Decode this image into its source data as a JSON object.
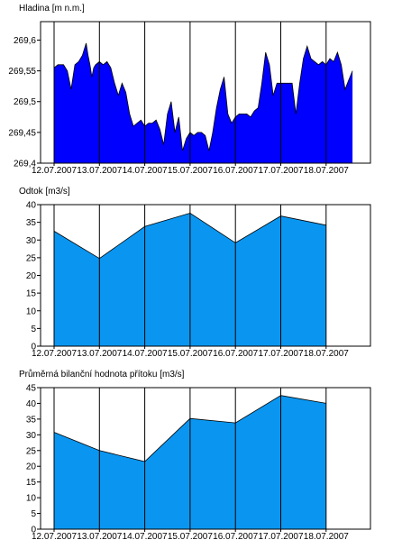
{
  "chart_data": [
    {
      "type": "area",
      "title": "Hladina [m n.m.]",
      "xlabel": "",
      "ylabel": "",
      "x_ticks": [
        "12.07.2007",
        "13.07.2007",
        "14.07.2007",
        "15.07.2007",
        "16.07.2007",
        "17.07.2007",
        "18.07.2007"
      ],
      "y_ticks": [
        "269,4",
        "269,45",
        "269,5",
        "269,55",
        "269,6"
      ],
      "ylim": [
        269.4,
        269.63
      ],
      "fill_color": "#0000ff",
      "grid": "vertical",
      "x": [
        "12.07.2007 00:00",
        "12.07.2007 02:00",
        "12.07.2007 05:00",
        "12.07.2007 07:00",
        "12.07.2007 09:00",
        "12.07.2007 11:00",
        "12.07.2007 13:00",
        "12.07.2007 15:00",
        "12.07.2007 17:00",
        "12.07.2007 18:00",
        "12.07.2007 19:00",
        "12.07.2007 20:00",
        "12.07.2007 21:00",
        "12.07.2007 22:00",
        "13.07.2007 00:00",
        "13.07.2007 02:00",
        "13.07.2007 04:00",
        "13.07.2007 06:00",
        "13.07.2007 08:00",
        "13.07.2007 10:00",
        "13.07.2007 12:00",
        "13.07.2007 14:00",
        "13.07.2007 16:00",
        "13.07.2007 18:00",
        "13.07.2007 20:00",
        "13.07.2007 22:00",
        "14.07.2007 00:00",
        "14.07.2007 02:00",
        "14.07.2007 04:00",
        "14.07.2007 06:00",
        "14.07.2007 08:00",
        "14.07.2007 10:00",
        "14.07.2007 12:00",
        "14.07.2007 14:00",
        "14.07.2007 16:00",
        "14.07.2007 18:00",
        "14.07.2007 20:00",
        "14.07.2007 22:00",
        "15.07.2007 00:00",
        "15.07.2007 02:00",
        "15.07.2007 04:00",
        "15.07.2007 06:00",
        "15.07.2007 08:00",
        "15.07.2007 10:00",
        "15.07.2007 12:00",
        "15.07.2007 14:00",
        "15.07.2007 16:00",
        "15.07.2007 18:00",
        "15.07.2007 20:00",
        "15.07.2007 22:00",
        "16.07.2007 00:00",
        "16.07.2007 02:00",
        "16.07.2007 04:00",
        "16.07.2007 06:00",
        "16.07.2007 08:00",
        "16.07.2007 10:00",
        "16.07.2007 12:00",
        "16.07.2007 14:00",
        "16.07.2007 16:00",
        "16.07.2007 18:00",
        "16.07.2007 20:00",
        "16.07.2007 22:00",
        "17.07.2007 00:00",
        "17.07.2007 02:00",
        "17.07.2007 04:00",
        "17.07.2007 06:00",
        "17.07.2007 08:00",
        "17.07.2007 10:00",
        "17.07.2007 12:00",
        "17.07.2007 14:00",
        "17.07.2007 16:00",
        "17.07.2007 18:00",
        "17.07.2007 20:00",
        "17.07.2007 22:00",
        "18.07.2007 00:00",
        "18.07.2007 02:00",
        "18.07.2007 04:00",
        "18.07.2007 06:00",
        "18.07.2007 08:00",
        "18.07.2007 10:00",
        "18.07.2007 12:00",
        "18.07.2007 14:00"
      ],
      "y": [
        269.555,
        269.56,
        269.56,
        269.55,
        269.52,
        269.56,
        269.565,
        269.575,
        269.595,
        269.575,
        269.56,
        269.54,
        269.555,
        269.56,
        269.565,
        269.56,
        269.565,
        269.555,
        269.53,
        269.51,
        269.53,
        269.515,
        269.48,
        269.46,
        269.465,
        269.47,
        269.46,
        269.465,
        269.465,
        269.47,
        269.455,
        269.43,
        269.48,
        269.5,
        269.45,
        269.475,
        269.42,
        269.44,
        269.45,
        269.445,
        269.45,
        269.45,
        269.445,
        269.42,
        269.45,
        269.49,
        269.52,
        269.54,
        269.48,
        269.465,
        269.475,
        269.48,
        269.48,
        269.48,
        269.475,
        269.485,
        269.49,
        269.53,
        269.58,
        269.56,
        269.51,
        269.53,
        269.53,
        269.53,
        269.53,
        269.53,
        269.48,
        269.53,
        269.57,
        269.59,
        269.57,
        269.565,
        269.56,
        269.565,
        269.56,
        269.57,
        269.565,
        269.58,
        269.56,
        269.52,
        269.535,
        269.55
      ]
    },
    {
      "type": "area",
      "title": "Odtok [m3/s]",
      "xlabel": "",
      "ylabel": "",
      "x_ticks": [
        "12.07.2007",
        "13.07.2007",
        "14.07.2007",
        "15.07.2007",
        "16.07.2007",
        "17.07.2007",
        "18.07.2007"
      ],
      "y_ticks": [
        "0",
        "5",
        "10",
        "15",
        "20",
        "25",
        "30",
        "35",
        "40"
      ],
      "ylim": [
        0,
        40
      ],
      "fill_color": "#0a96f0",
      "grid": "vertical",
      "x": [
        "12.07.2007",
        "13.07.2007",
        "14.07.2007",
        "15.07.2007",
        "16.07.2007",
        "17.07.2007",
        "18.07.2007"
      ],
      "y": [
        32.5,
        24.8,
        33.8,
        37.6,
        29.2,
        36.8,
        34.2
      ]
    },
    {
      "type": "area",
      "title": "Průměrná bilanční hodnota přítoku [m3/s]",
      "xlabel": "",
      "ylabel": "",
      "x_ticks": [
        "12.07.2007",
        "13.07.2007",
        "14.07.2007",
        "15.07.2007",
        "16.07.2007",
        "17.07.2007",
        "18.07.2007"
      ],
      "y_ticks": [
        "0",
        "5",
        "10",
        "15",
        "20",
        "25",
        "30",
        "35",
        "40",
        "45"
      ],
      "ylim": [
        0,
        45
      ],
      "fill_color": "#0a96f0",
      "grid": "vertical",
      "x": [
        "12.07.2007",
        "13.07.2007",
        "14.07.2007",
        "15.07.2007",
        "16.07.2007",
        "17.07.2007",
        "18.07.2007"
      ],
      "y": [
        30.8,
        25.0,
        21.5,
        35.2,
        33.8,
        42.5,
        40.0
      ]
    }
  ]
}
